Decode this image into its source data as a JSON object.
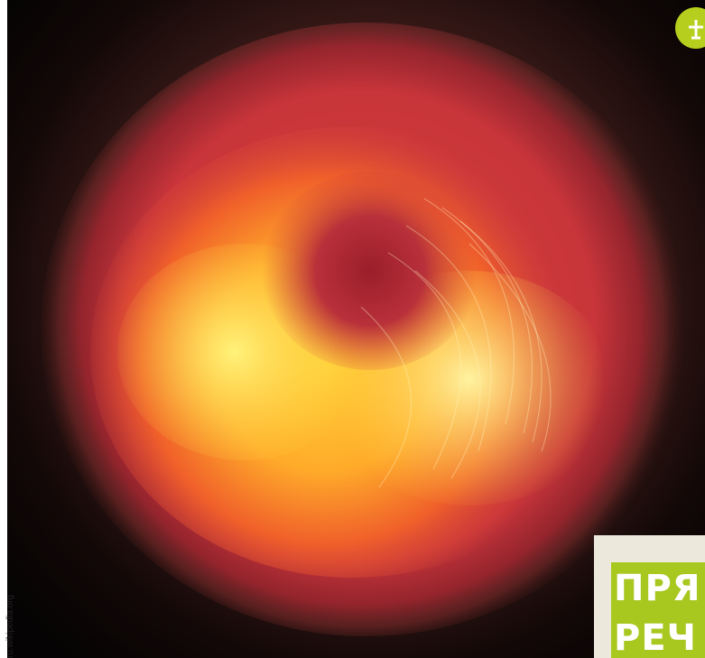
{
  "image": {
    "credit": "ru.wikipedia.org"
  },
  "badge": {
    "lines": [
      "ПРЯ",
      "РЕЧ"
    ]
  }
}
